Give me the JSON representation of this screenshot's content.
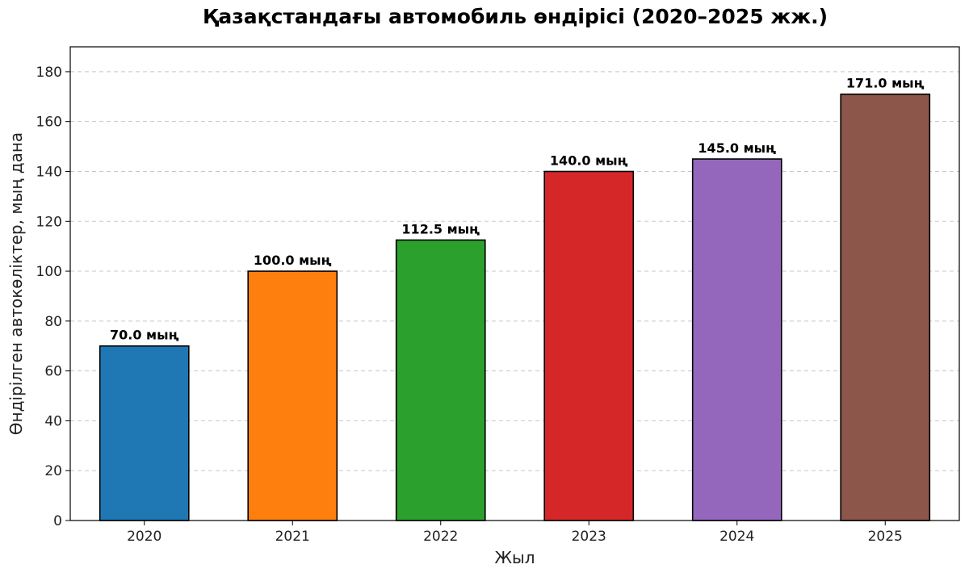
{
  "chart_data": {
    "type": "bar",
    "title": "Қазақстандағы автомобиль өндірісі (2020–2025 жж.)",
    "xlabel": "Жыл",
    "ylabel": "Өндірілген автокөліктер, мың дана",
    "categories": [
      "2020",
      "2021",
      "2022",
      "2023",
      "2024",
      "2025"
    ],
    "values": [
      70.0,
      100.0,
      112.5,
      140.0,
      145.0,
      171.0
    ],
    "data_labels": [
      "70.0 мың",
      "100.0 мың",
      "112.5 мың",
      "140.0 мың",
      "145.0 мың",
      "171.0 мың"
    ],
    "colors": [
      "#1f77b4",
      "#ff7f0e",
      "#2ca02c",
      "#d62728",
      "#9467bd",
      "#8c564b"
    ],
    "ylim": [
      0,
      190
    ],
    "yticks": [
      0,
      20,
      40,
      60,
      80,
      100,
      120,
      140,
      160,
      180
    ],
    "grid": "y-dashed",
    "legend": "none"
  }
}
